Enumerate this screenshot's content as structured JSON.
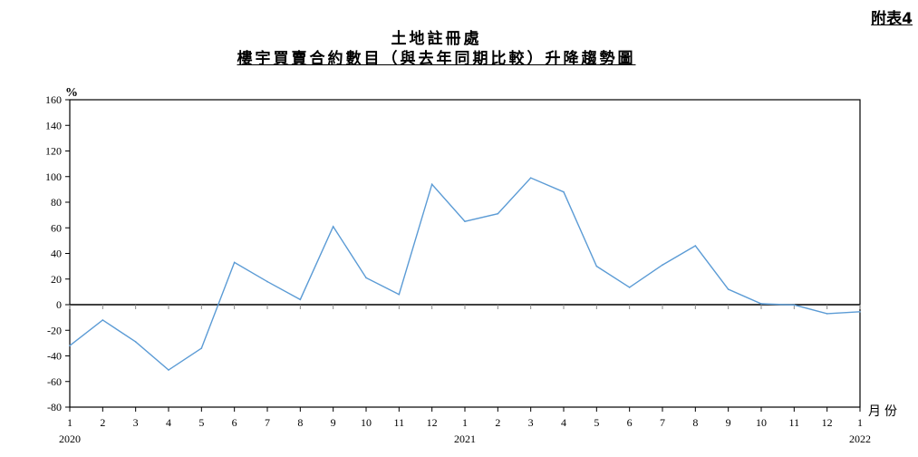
{
  "header": {
    "annex": "附表4",
    "title": "土地註冊處",
    "subtitle": "樓宇買賣合約數目（與去年同期比較）升降趨勢圖"
  },
  "chart_data": {
    "type": "line",
    "title": "樓宇買賣合約數目（與去年同期比較）升降趨勢圖",
    "ylabel": "%",
    "xlabel": "月份",
    "ylim": [
      -80,
      160
    ],
    "yticks": [
      160,
      140,
      120,
      100,
      80,
      60,
      40,
      20,
      0,
      -20,
      -40,
      -60,
      -80
    ],
    "grid": false,
    "line_color": "#5b9bd5",
    "x": [
      "2020-1",
      "2020-2",
      "2020-3",
      "2020-4",
      "2020-5",
      "2020-6",
      "2020-7",
      "2020-8",
      "2020-9",
      "2020-10",
      "2020-11",
      "2020-12",
      "2021-1",
      "2021-2",
      "2021-3",
      "2021-4",
      "2021-5",
      "2021-6",
      "2021-7",
      "2021-8",
      "2021-9",
      "2021-10",
      "2021-11",
      "2021-12",
      "2022-1"
    ],
    "month_labels": [
      "1",
      "2",
      "3",
      "4",
      "5",
      "6",
      "7",
      "8",
      "9",
      "10",
      "11",
      "12",
      "1",
      "2",
      "3",
      "4",
      "5",
      "6",
      "7",
      "8",
      "9",
      "10",
      "11",
      "12",
      "1"
    ],
    "year_labels": [
      {
        "index": 0,
        "label": "2020"
      },
      {
        "index": 12,
        "label": "2021"
      },
      {
        "index": 24,
        "label": "2022"
      }
    ],
    "values": [
      -32,
      -12,
      -29,
      -51,
      -34,
      33,
      18,
      4,
      61,
      21,
      8,
      94,
      65,
      71,
      99,
      88,
      30,
      13.5,
      31,
      46,
      12,
      0.7,
      -0.2,
      -7,
      -5.5
    ]
  }
}
